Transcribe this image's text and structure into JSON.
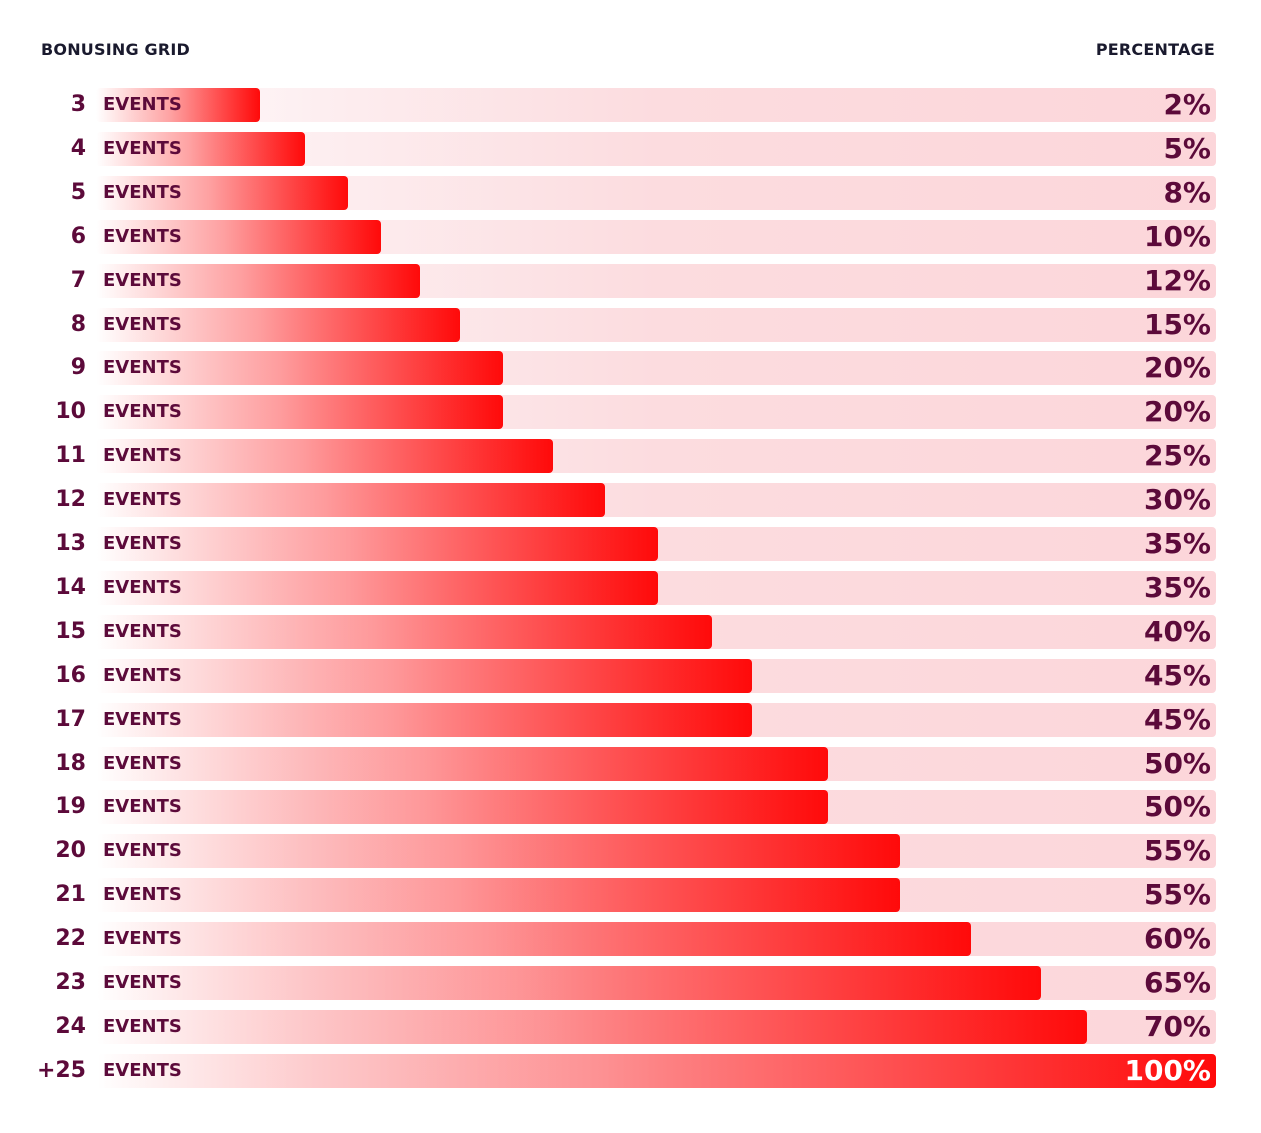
{
  "header": {
    "left": "BONUSING GRID",
    "right": "PERCENTAGE"
  },
  "chart_data": {
    "type": "bar",
    "orientation": "horizontal",
    "title": "BONUSING GRID",
    "value_label": "PERCENTAGE",
    "unit_label": "EVENTS",
    "categories": [
      "3",
      "4",
      "5",
      "6",
      "7",
      "8",
      "9",
      "10",
      "11",
      "12",
      "13",
      "14",
      "15",
      "16",
      "17",
      "18",
      "19",
      "20",
      "21",
      "22",
      "23",
      "24",
      "+25"
    ],
    "values": [
      2,
      5,
      8,
      10,
      12,
      15,
      20,
      20,
      25,
      30,
      35,
      35,
      40,
      45,
      45,
      50,
      50,
      55,
      55,
      60,
      65,
      70,
      100
    ],
    "value_texts": [
      "2%",
      "5%",
      "8%",
      "10%",
      "12%",
      "15%",
      "20%",
      "20%",
      "25%",
      "30%",
      "35%",
      "35%",
      "40%",
      "45%",
      "45%",
      "50%",
      "50%",
      "55%",
      "55%",
      "60%",
      "65%",
      "70%",
      "100%"
    ],
    "xlim": [
      0,
      100
    ],
    "colors": {
      "bar": "#ff0a0a",
      "track": "#fcd6da",
      "label": "#5c0a3a"
    }
  }
}
